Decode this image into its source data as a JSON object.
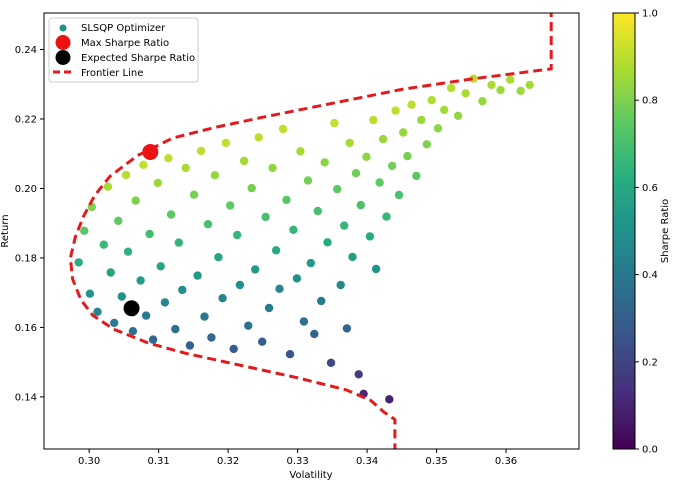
{
  "chart_data": {
    "type": "scatter",
    "xlabel": "Volatility",
    "ylabel": "Return",
    "xlim": [
      0.2935,
      0.3705
    ],
    "ylim": [
      0.125,
      0.2505
    ],
    "x_ticks": [
      "0.30",
      "0.31",
      "0.32",
      "0.33",
      "0.34",
      "0.35",
      "0.36"
    ],
    "y_ticks": [
      "0.14",
      "0.16",
      "0.18",
      "0.20",
      "0.22",
      "0.24"
    ],
    "colorbar": {
      "label": "Sharpe Ratio",
      "range": [
        0.0,
        1.0
      ],
      "ticks": [
        "0.0",
        "0.2",
        "0.4",
        "0.6",
        "0.8",
        "1.0"
      ],
      "colormap": "viridis"
    },
    "legend": {
      "placement": "top-left",
      "entries": [
        {
          "label": "SLSQP Optimizer",
          "kind": "scatter-dot",
          "color": "#21918c"
        },
        {
          "label": "Max Sharpe Ratio",
          "kind": "big-dot",
          "color": "#ee1111"
        },
        {
          "label": "Expected Sharpe Ratio",
          "kind": "big-dot",
          "color": "#000000"
        },
        {
          "label": "Frontier Line",
          "kind": "dashed-line",
          "color": "#e31a1c"
        }
      ]
    },
    "max_sharpe_point": {
      "x": 0.3088,
      "y": 0.2105
    },
    "expected_sharpe_point": {
      "x": 0.3061,
      "y": 0.1655
    },
    "frontier_line": [
      {
        "x": 0.3665,
        "y": 0.26
      },
      {
        "x": 0.3665,
        "y": 0.2344
      },
      {
        "x": 0.355,
        "y": 0.2315
      },
      {
        "x": 0.345,
        "y": 0.2285
      },
      {
        "x": 0.335,
        "y": 0.2245
      },
      {
        "x": 0.325,
        "y": 0.2205
      },
      {
        "x": 0.318,
        "y": 0.2175
      },
      {
        "x": 0.312,
        "y": 0.2145
      },
      {
        "x": 0.307,
        "y": 0.2095
      },
      {
        "x": 0.303,
        "y": 0.2035
      },
      {
        "x": 0.3008,
        "y": 0.198
      },
      {
        "x": 0.2992,
        "y": 0.192
      },
      {
        "x": 0.298,
        "y": 0.186
      },
      {
        "x": 0.2973,
        "y": 0.18
      },
      {
        "x": 0.2976,
        "y": 0.174
      },
      {
        "x": 0.2988,
        "y": 0.168
      },
      {
        "x": 0.3005,
        "y": 0.1635
      },
      {
        "x": 0.3035,
        "y": 0.1595
      },
      {
        "x": 0.3085,
        "y": 0.1555
      },
      {
        "x": 0.314,
        "y": 0.1525
      },
      {
        "x": 0.322,
        "y": 0.149
      },
      {
        "x": 0.33,
        "y": 0.1455
      },
      {
        "x": 0.337,
        "y": 0.142
      },
      {
        "x": 0.3405,
        "y": 0.139
      },
      {
        "x": 0.3425,
        "y": 0.1355
      },
      {
        "x": 0.344,
        "y": 0.1335
      },
      {
        "x": 0.344,
        "y": 0.12
      }
    ],
    "scatter_points": [
      {
        "x": 0.2985,
        "y": 0.1787,
        "s": 0.62
      },
      {
        "x": 0.2993,
        "y": 0.1878,
        "s": 0.73
      },
      {
        "x": 0.3001,
        "y": 0.1697,
        "s": 0.52
      },
      {
        "x": 0.3004,
        "y": 0.1947,
        "s": 0.8
      },
      {
        "x": 0.3012,
        "y": 0.1645,
        "s": 0.45
      },
      {
        "x": 0.3021,
        "y": 0.1838,
        "s": 0.67
      },
      {
        "x": 0.3027,
        "y": 0.2005,
        "s": 0.86
      },
      {
        "x": 0.3031,
        "y": 0.1758,
        "s": 0.58
      },
      {
        "x": 0.3036,
        "y": 0.1613,
        "s": 0.41
      },
      {
        "x": 0.3042,
        "y": 0.1907,
        "s": 0.75
      },
      {
        "x": 0.3047,
        "y": 0.1689,
        "s": 0.5
      },
      {
        "x": 0.3053,
        "y": 0.2039,
        "s": 0.89
      },
      {
        "x": 0.3056,
        "y": 0.1818,
        "s": 0.64
      },
      {
        "x": 0.3063,
        "y": 0.1589,
        "s": 0.38
      },
      {
        "x": 0.3067,
        "y": 0.1965,
        "s": 0.8
      },
      {
        "x": 0.3074,
        "y": 0.1735,
        "s": 0.55
      },
      {
        "x": 0.3078,
        "y": 0.2068,
        "s": 0.91
      },
      {
        "x": 0.3082,
        "y": 0.1634,
        "s": 0.42
      },
      {
        "x": 0.3087,
        "y": 0.1869,
        "s": 0.69
      },
      {
        "x": 0.3092,
        "y": 0.1565,
        "s": 0.34
      },
      {
        "x": 0.3099,
        "y": 0.2016,
        "s": 0.85
      },
      {
        "x": 0.3103,
        "y": 0.1776,
        "s": 0.59
      },
      {
        "x": 0.3109,
        "y": 0.1672,
        "s": 0.46
      },
      {
        "x": 0.3114,
        "y": 0.2087,
        "s": 0.9
      },
      {
        "x": 0.3118,
        "y": 0.1925,
        "s": 0.75
      },
      {
        "x": 0.3124,
        "y": 0.1595,
        "s": 0.36
      },
      {
        "x": 0.3129,
        "y": 0.1844,
        "s": 0.65
      },
      {
        "x": 0.3134,
        "y": 0.1708,
        "s": 0.49
      },
      {
        "x": 0.3139,
        "y": 0.2059,
        "s": 0.87
      },
      {
        "x": 0.3145,
        "y": 0.1548,
        "s": 0.31
      },
      {
        "x": 0.3151,
        "y": 0.1982,
        "s": 0.79
      },
      {
        "x": 0.3156,
        "y": 0.1749,
        "s": 0.54
      },
      {
        "x": 0.3161,
        "y": 0.2108,
        "s": 0.9
      },
      {
        "x": 0.3166,
        "y": 0.1631,
        "s": 0.4
      },
      {
        "x": 0.3171,
        "y": 0.1897,
        "s": 0.7
      },
      {
        "x": 0.3176,
        "y": 0.1571,
        "s": 0.33
      },
      {
        "x": 0.3181,
        "y": 0.2038,
        "s": 0.84
      },
      {
        "x": 0.3186,
        "y": 0.1802,
        "s": 0.59
      },
      {
        "x": 0.3192,
        "y": 0.1684,
        "s": 0.45
      },
      {
        "x": 0.3197,
        "y": 0.2131,
        "s": 0.91
      },
      {
        "x": 0.3203,
        "y": 0.1951,
        "s": 0.75
      },
      {
        "x": 0.3208,
        "y": 0.1538,
        "s": 0.29
      },
      {
        "x": 0.3213,
        "y": 0.1866,
        "s": 0.66
      },
      {
        "x": 0.3217,
        "y": 0.1722,
        "s": 0.49
      },
      {
        "x": 0.3223,
        "y": 0.2079,
        "s": 0.86
      },
      {
        "x": 0.3229,
        "y": 0.1605,
        "s": 0.37
      },
      {
        "x": 0.3234,
        "y": 0.2001,
        "s": 0.79
      },
      {
        "x": 0.3239,
        "y": 0.1767,
        "s": 0.54
      },
      {
        "x": 0.3244,
        "y": 0.2147,
        "s": 0.9
      },
      {
        "x": 0.3249,
        "y": 0.1559,
        "s": 0.3
      },
      {
        "x": 0.3254,
        "y": 0.1918,
        "s": 0.7
      },
      {
        "x": 0.3259,
        "y": 0.1656,
        "s": 0.41
      },
      {
        "x": 0.3264,
        "y": 0.2059,
        "s": 0.83
      },
      {
        "x": 0.3269,
        "y": 0.1822,
        "s": 0.6
      },
      {
        "x": 0.3274,
        "y": 0.1711,
        "s": 0.46
      },
      {
        "x": 0.3279,
        "y": 0.2171,
        "s": 0.91
      },
      {
        "x": 0.3284,
        "y": 0.1967,
        "s": 0.74
      },
      {
        "x": 0.3289,
        "y": 0.1523,
        "s": 0.26
      },
      {
        "x": 0.3294,
        "y": 0.1881,
        "s": 0.66
      },
      {
        "x": 0.3299,
        "y": 0.1741,
        "s": 0.5
      },
      {
        "x": 0.3304,
        "y": 0.2107,
        "s": 0.86
      },
      {
        "x": 0.3309,
        "y": 0.1617,
        "s": 0.36
      },
      {
        "x": 0.3315,
        "y": 0.2023,
        "s": 0.78
      },
      {
        "x": 0.3319,
        "y": 0.1785,
        "s": 0.54
      },
      {
        "x": 0.3324,
        "y": 0.1581,
        "s": 0.31
      },
      {
        "x": 0.3329,
        "y": 0.1935,
        "s": 0.7
      },
      {
        "x": 0.3334,
        "y": 0.1676,
        "s": 0.42
      },
      {
        "x": 0.3339,
        "y": 0.2075,
        "s": 0.82
      },
      {
        "x": 0.3343,
        "y": 0.1845,
        "s": 0.61
      },
      {
        "x": 0.3348,
        "y": 0.1498,
        "s": 0.22
      },
      {
        "x": 0.3353,
        "y": 0.2188,
        "s": 0.91
      },
      {
        "x": 0.3357,
        "y": 0.1998,
        "s": 0.75
      },
      {
        "x": 0.3362,
        "y": 0.1722,
        "s": 0.47
      },
      {
        "x": 0.3367,
        "y": 0.1893,
        "s": 0.66
      },
      {
        "x": 0.3371,
        "y": 0.1597,
        "s": 0.32
      },
      {
        "x": 0.3375,
        "y": 0.2131,
        "s": 0.86
      },
      {
        "x": 0.3379,
        "y": 0.1803,
        "s": 0.56
      },
      {
        "x": 0.3384,
        "y": 0.2044,
        "s": 0.78
      },
      {
        "x": 0.3388,
        "y": 0.1465,
        "s": 0.18
      },
      {
        "x": 0.3391,
        "y": 0.1952,
        "s": 0.71
      },
      {
        "x": 0.3395,
        "y": 0.1409,
        "s": 0.12
      },
      {
        "x": 0.3399,
        "y": 0.2091,
        "s": 0.82
      },
      {
        "x": 0.3404,
        "y": 0.1862,
        "s": 0.61
      },
      {
        "x": 0.3409,
        "y": 0.2197,
        "s": 0.9
      },
      {
        "x": 0.3413,
        "y": 0.1768,
        "s": 0.51
      },
      {
        "x": 0.3418,
        "y": 0.2017,
        "s": 0.75
      },
      {
        "x": 0.3423,
        "y": 0.2142,
        "s": 0.85
      },
      {
        "x": 0.3428,
        "y": 0.1919,
        "s": 0.66
      },
      {
        "x": 0.3432,
        "y": 0.1393,
        "s": 0.1
      },
      {
        "x": 0.3436,
        "y": 0.2065,
        "s": 0.78
      },
      {
        "x": 0.3441,
        "y": 0.2224,
        "s": 0.9
      },
      {
        "x": 0.3446,
        "y": 0.1981,
        "s": 0.71
      },
      {
        "x": 0.3452,
        "y": 0.2161,
        "s": 0.84
      },
      {
        "x": 0.3458,
        "y": 0.2093,
        "s": 0.79
      },
      {
        "x": 0.3464,
        "y": 0.2241,
        "s": 0.89
      },
      {
        "x": 0.3471,
        "y": 0.2036,
        "s": 0.74
      },
      {
        "x": 0.3478,
        "y": 0.2197,
        "s": 0.85
      },
      {
        "x": 0.3486,
        "y": 0.2127,
        "s": 0.8
      },
      {
        "x": 0.3493,
        "y": 0.2254,
        "s": 0.88
      },
      {
        "x": 0.3502,
        "y": 0.2173,
        "s": 0.82
      },
      {
        "x": 0.3511,
        "y": 0.2226,
        "s": 0.86
      },
      {
        "x": 0.3521,
        "y": 0.2289,
        "s": 0.89
      },
      {
        "x": 0.3531,
        "y": 0.2209,
        "s": 0.83
      },
      {
        "x": 0.3542,
        "y": 0.2274,
        "s": 0.87
      },
      {
        "x": 0.3553,
        "y": 0.2316,
        "s": 0.89
      },
      {
        "x": 0.3566,
        "y": 0.2251,
        "s": 0.84
      },
      {
        "x": 0.3579,
        "y": 0.2298,
        "s": 0.87
      },
      {
        "x": 0.3592,
        "y": 0.2283,
        "s": 0.85
      },
      {
        "x": 0.3606,
        "y": 0.2313,
        "s": 0.87
      },
      {
        "x": 0.3621,
        "y": 0.2281,
        "s": 0.85
      },
      {
        "x": 0.3634,
        "y": 0.2298,
        "s": 0.86
      }
    ]
  }
}
